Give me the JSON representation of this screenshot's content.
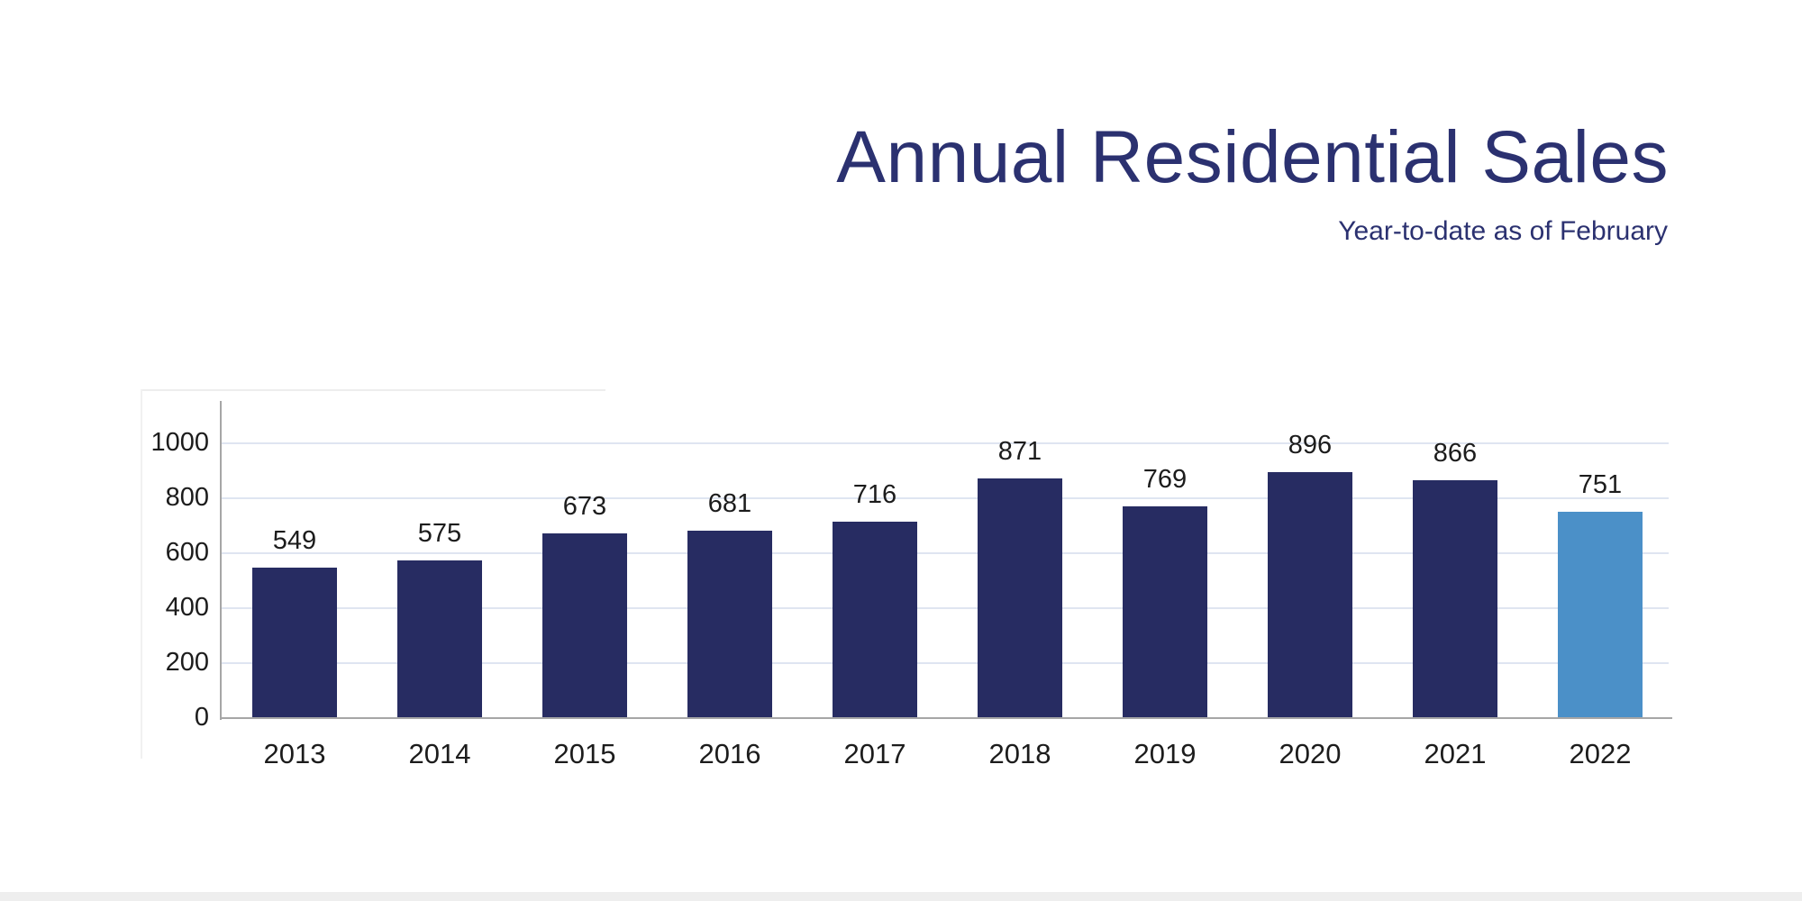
{
  "header": {
    "title": "Annual Residential Sales",
    "subtitle": "Year-to-date as of February"
  },
  "chart_data": {
    "type": "bar",
    "title": "Annual Residential Sales",
    "subtitle": "Year-to-date as of February",
    "categories": [
      "2013",
      "2014",
      "2015",
      "2016",
      "2017",
      "2018",
      "2019",
      "2020",
      "2021",
      "2022"
    ],
    "values": [
      549,
      575,
      673,
      681,
      716,
      871,
      769,
      896,
      866,
      751
    ],
    "data_labels_shown": true,
    "xlabel": "",
    "ylabel": "",
    "yticks": [
      0,
      200,
      400,
      600,
      800,
      1000
    ],
    "ylim": [
      0,
      1150
    ],
    "grid": true,
    "legend_position": "none",
    "highlight_index": 9
  },
  "colors": {
    "title_text": "#2b3170",
    "subtitle_text": "#2b3170",
    "bar_default": "#272c62",
    "bar_highlight": "#4b90c8",
    "gridline": "#dfe5f1",
    "axis_line": "#a6a6a6",
    "label_text": "#1c1c1c"
  }
}
